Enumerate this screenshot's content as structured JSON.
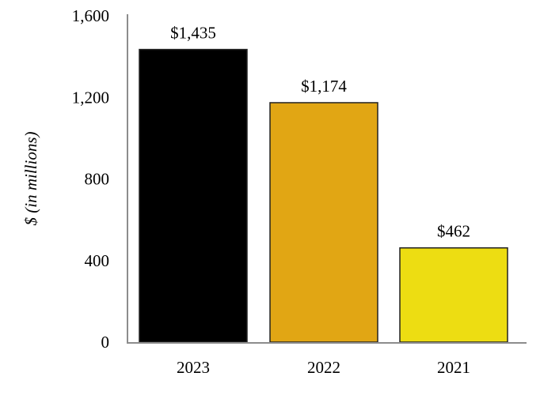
{
  "chart_data": {
    "type": "bar",
    "title": "",
    "xlabel": "",
    "ylabel": "$ (in millions)",
    "categories": [
      "2023",
      "2022",
      "2021"
    ],
    "values": [
      1435,
      1174,
      462
    ],
    "data_labels": [
      "$1,435",
      "$1,174",
      "$462"
    ],
    "colors": [
      "#000000",
      "#E1A614",
      "#EDDD12"
    ],
    "ylim": [
      0,
      1600
    ],
    "yticks": [
      0,
      400,
      800,
      1200,
      1600
    ],
    "ytick_labels": [
      "0",
      "400",
      "800",
      "1,200",
      "1,600"
    ],
    "grid": false,
    "legend": "none"
  }
}
